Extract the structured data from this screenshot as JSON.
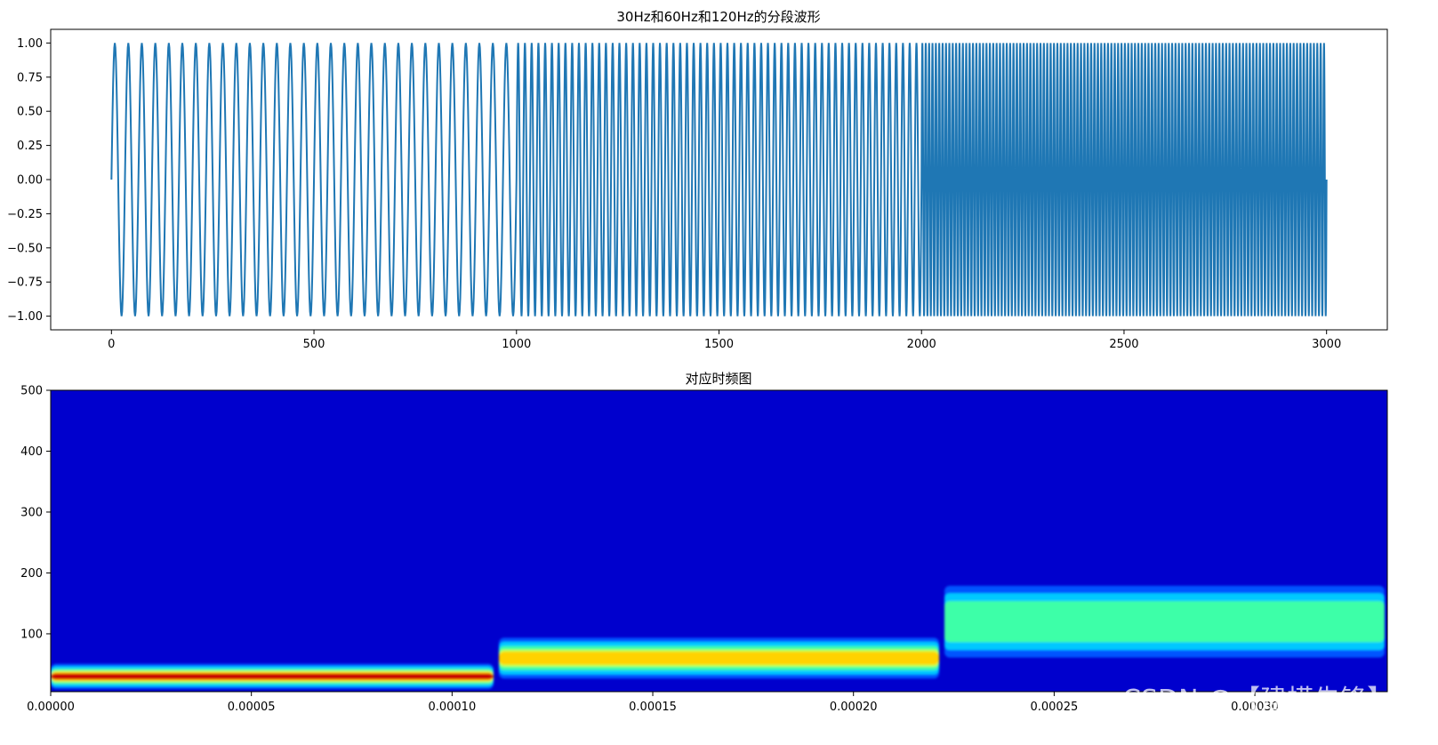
{
  "chart_data": [
    {
      "type": "line",
      "title": "30Hz和60Hz和120Hz的分段波形",
      "xlim": [
        -150,
        3150
      ],
      "ylim": [
        -1.1,
        1.1
      ],
      "x_ticks": [
        0,
        500,
        1000,
        1500,
        2000,
        2500,
        3000
      ],
      "y_ticks": [
        1.0,
        0.75,
        0.5,
        0.25,
        0.0,
        -0.25,
        -0.5,
        -0.75,
        -1.0
      ],
      "x_tick_labels": [
        "0",
        "500",
        "1000",
        "1500",
        "2000",
        "2500",
        "3000"
      ],
      "y_tick_labels": [
        "1.00",
        "0.75",
        "0.50",
        "0.25",
        "0.00",
        "−0.25",
        "−0.50",
        "−0.75",
        "−1.00"
      ],
      "series": [
        {
          "color": "#1f77b4",
          "segments": [
            {
              "x_start": 0,
              "x_end": 1000,
              "cycles": 30
            },
            {
              "x_start": 1000,
              "x_end": 2000,
              "cycles": 60
            },
            {
              "x_start": 2000,
              "x_end": 3000,
              "cycles": 120
            }
          ],
          "amplitude": 1.0
        }
      ],
      "grid": false
    },
    {
      "type": "heatmap",
      "title": "对应时频图",
      "xlim": [
        0,
        0.000333
      ],
      "ylim": [
        5,
        500
      ],
      "x_ticks": [
        0,
        5e-05,
        0.0001,
        0.00015,
        0.0002,
        0.00025,
        0.0003
      ],
      "y_ticks": [
        100,
        200,
        300,
        400,
        500
      ],
      "x_tick_labels": [
        "0.00000",
        "0.00005",
        "0.00010",
        "0.00015",
        "0.00020",
        "0.00025",
        "0.00030"
      ],
      "y_tick_labels": [
        "100",
        "200",
        "300",
        "400",
        "500"
      ],
      "colormap": "jet",
      "background_color": "#0000cd",
      "bands": [
        {
          "x_start": 0,
          "x_end": 0.000111,
          "center_freq": 30
        },
        {
          "x_start": 0.000111,
          "x_end": 0.000222,
          "center_freq": 60
        },
        {
          "x_start": 0.000222,
          "x_end": 0.000333,
          "center_freq": 120
        }
      ]
    }
  ],
  "watermark": "CSDN @【建模先锋】"
}
